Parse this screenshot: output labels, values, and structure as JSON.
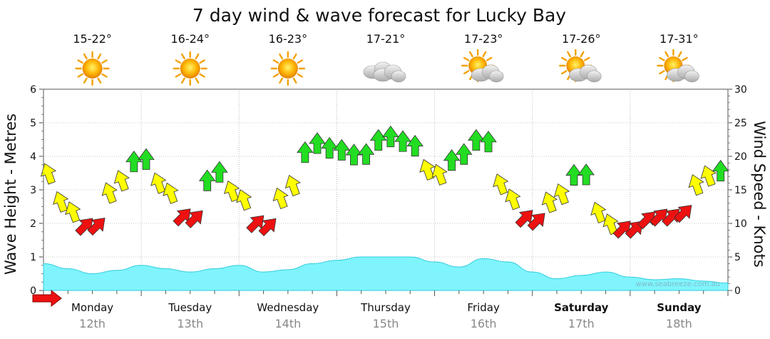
{
  "chart_data": {
    "type": "line",
    "title": "7 day wind & wave forecast for Lucky Bay",
    "ylabel_left": "Wave Height - Metres",
    "ylabel_right": "Wind Speed - Knots",
    "y_left_range": [
      0,
      6
    ],
    "y_right_range": [
      0,
      30
    ],
    "y_left_ticks": [
      "0",
      "1",
      "2",
      "3",
      "4",
      "5",
      "6"
    ],
    "y_right_ticks": [
      "0",
      "5",
      "10",
      "15",
      "20",
      "25",
      "30"
    ],
    "grid": true,
    "watermark": "www.seabreeze.com.au",
    "colors": {
      "light_wind": "#ffff00",
      "moderate_wind": "#22dd22",
      "strong_wind": "#ee1111",
      "wave_fill": "#7ff4fc",
      "wave_line": "#33ccdd"
    },
    "days": [
      {
        "name": "Monday",
        "date": "12th",
        "temp": "15-22°",
        "weather_icon": "sun-icon",
        "bold": false
      },
      {
        "name": "Tuesday",
        "date": "13th",
        "temp": "16-24°",
        "weather_icon": "sun-icon",
        "bold": false
      },
      {
        "name": "Wednesday",
        "date": "14th",
        "temp": "16-23°",
        "weather_icon": "sun-icon",
        "bold": false
      },
      {
        "name": "Thursday",
        "date": "15th",
        "temp": "17-21°",
        "weather_icon": "cloud-icon",
        "bold": false
      },
      {
        "name": "Friday",
        "date": "16th",
        "temp": "17-23°",
        "weather_icon": "partly-cloudy-icon",
        "bold": false
      },
      {
        "name": "Saturday",
        "date": "17th",
        "temp": "17-26°",
        "weather_icon": "partly-cloudy-icon",
        "bold": true
      },
      {
        "name": "Sunday",
        "date": "18th",
        "temp": "17-31°",
        "weather_icon": "partly-cloudy-icon",
        "bold": true
      }
    ],
    "series": [
      {
        "name": "Wave Height",
        "axis": "left",
        "x_days": [
          0,
          0.25,
          0.5,
          0.75,
          1.0,
          1.25,
          1.5,
          1.75,
          2.0,
          2.25,
          2.5,
          2.75,
          3.0,
          3.25,
          3.5,
          3.75,
          4.0,
          4.25,
          4.5,
          4.75,
          5.0,
          5.25,
          5.5,
          5.75,
          6.0,
          6.25,
          6.5,
          6.75,
          7.0
        ],
        "values": [
          0.8,
          0.65,
          0.5,
          0.6,
          0.75,
          0.65,
          0.55,
          0.65,
          0.75,
          0.55,
          0.62,
          0.8,
          0.9,
          1.0,
          1.0,
          1.0,
          0.85,
          0.7,
          0.95,
          0.85,
          0.55,
          0.35,
          0.45,
          0.55,
          0.4,
          0.32,
          0.35,
          0.28,
          0.22
        ]
      },
      {
        "name": "Wind Speed",
        "axis": "right",
        "x_days": [
          0,
          0.25,
          0.5,
          0.75,
          1.0,
          1.25,
          1.5,
          1.75,
          2.0,
          2.25,
          2.5,
          2.75,
          3.0,
          3.25,
          3.5,
          3.75,
          4.0,
          4.25,
          4.5,
          4.75,
          5.0,
          5.25,
          5.5,
          5.75,
          6.0,
          6.25,
          6.5,
          6.75,
          7.0
        ],
        "values": [
          18,
          12,
          9,
          16,
          20,
          15,
          10,
          18,
          14,
          9,
          15,
          22,
          21,
          20,
          23,
          22,
          17,
          20,
          23,
          14,
          10,
          14,
          18,
          10,
          9,
          11,
          11,
          17,
          18
        ],
        "band_colors": [
          "yellow",
          "yellow",
          "red",
          "yellow",
          "green",
          "yellow",
          "red",
          "green",
          "yellow",
          "red",
          "yellow",
          "green",
          "green",
          "green",
          "green",
          "green",
          "yellow",
          "green",
          "green",
          "yellow",
          "red",
          "yellow",
          "green",
          "yellow",
          "red",
          "red",
          "red",
          "yellow",
          "green"
        ]
      }
    ]
  }
}
